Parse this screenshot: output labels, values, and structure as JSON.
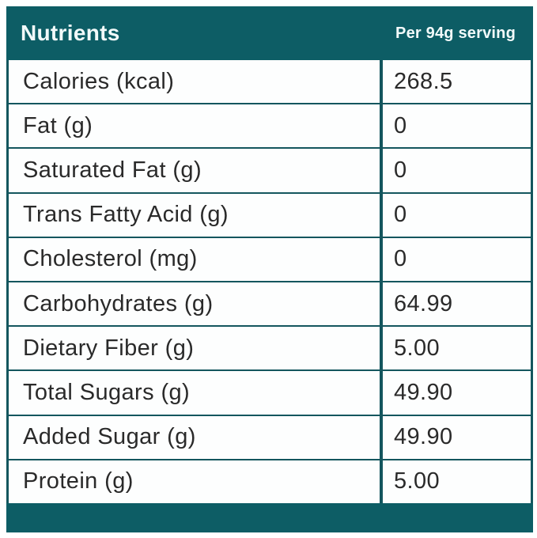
{
  "header": {
    "title": "Nutrients",
    "serving": "Per 94g serving"
  },
  "table": {
    "columns": [
      "Nutrients",
      "Per 94g serving"
    ],
    "rows": [
      {
        "label": "Calories (kcal)",
        "value": "268.5"
      },
      {
        "label": "Fat (g)",
        "value": "0"
      },
      {
        "label": "Saturated Fat (g)",
        "value": "0"
      },
      {
        "label": "Trans Fatty Acid (g)",
        "value": "0"
      },
      {
        "label": "Cholesterol (mg)",
        "value": "0"
      },
      {
        "label": "Carbohydrates (g)",
        "value": "64.99"
      },
      {
        "label": "Dietary Fiber (g)",
        "value": "5.00"
      },
      {
        "label": "Total Sugars (g)",
        "value": "49.90"
      },
      {
        "label": "Added Sugar (g)",
        "value": "49.90"
      },
      {
        "label": "Protein (g)",
        "value": "5.00"
      }
    ]
  },
  "colors": {
    "teal_header": "#0d5d65",
    "teal_border": "#14565e",
    "row_background": "#fdfefe",
    "row_text": "#2a2a2a",
    "header_text": "#f2fafa"
  }
}
